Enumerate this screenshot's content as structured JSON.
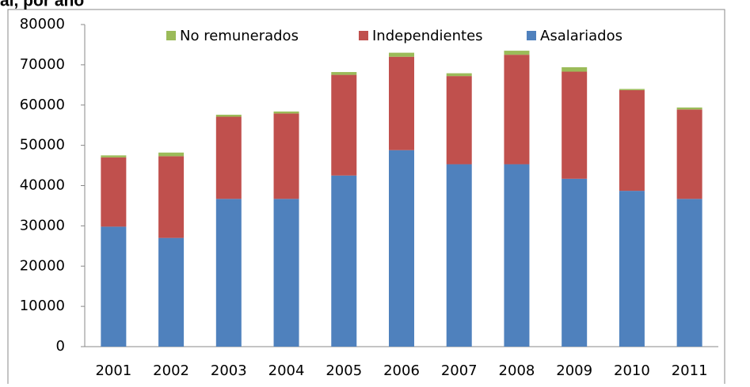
{
  "chart_data": {
    "type": "stacked_bar",
    "title": "al, por año",
    "categories": [
      "2001",
      "2002",
      "2003",
      "2004",
      "2005",
      "2006",
      "2007",
      "2008",
      "2009",
      "2010",
      "2011"
    ],
    "series": [
      {
        "name": "Asalariados",
        "color": "#4f81bd",
        "values": [
          29800,
          27000,
          36700,
          36700,
          42500,
          48800,
          45300,
          45300,
          41700,
          38700,
          36700
        ]
      },
      {
        "name": "Independientes",
        "color": "#c0504d",
        "values": [
          17200,
          20300,
          20400,
          21200,
          25000,
          23200,
          21900,
          27200,
          26600,
          25000,
          22200
        ]
      },
      {
        "name": "No remunerados",
        "color": "#9bbb59",
        "values": [
          500,
          900,
          500,
          500,
          700,
          1000,
          700,
          1000,
          1100,
          300,
          500
        ]
      }
    ],
    "ylim": [
      0,
      80000
    ],
    "yticks": [
      0,
      10000,
      20000,
      30000,
      40000,
      50000,
      60000,
      70000,
      80000
    ],
    "grid": false
  }
}
